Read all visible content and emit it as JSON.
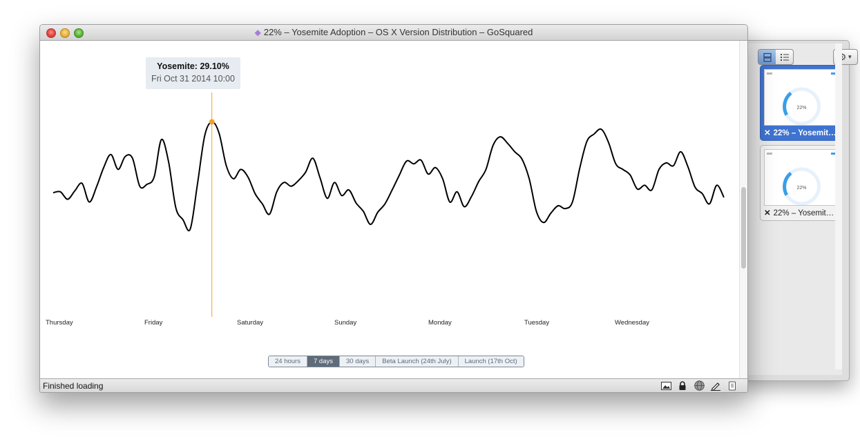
{
  "window": {
    "title": "22% – Yosemite Adoption – OS X Version Distribution – GoSquared"
  },
  "tooltip": {
    "series_value": "Yosemite: 29.10%",
    "date": "Fri Oct 31 2014 10:00"
  },
  "range_buttons": [
    {
      "label": "24 hours",
      "active": false
    },
    {
      "label": "7 days",
      "active": true
    },
    {
      "label": "30 days",
      "active": false
    },
    {
      "label": "Beta Launch (24th July)",
      "active": false
    },
    {
      "label": "Launch (17th Oct)",
      "active": false
    }
  ],
  "status": {
    "text": "Finished loading"
  },
  "drawer": {
    "thumbnails": [
      {
        "label": "22% – Yosemit…",
        "thumb_text": "22%",
        "selected": true
      },
      {
        "label": "22% – Yosemit…",
        "thumb_text": "22%",
        "selected": false
      }
    ]
  },
  "icons": {
    "status": [
      "picture-icon",
      "lock-icon",
      "globe-icon",
      "pencil-icon",
      "phone-icon"
    ]
  },
  "colors": {
    "line": "#000000",
    "hover_line": "#f0a030",
    "hover_point": "#f0a030",
    "active_button": "#5e6b78",
    "selected_thumb": "#3f73d0"
  },
  "chart_data": {
    "type": "line",
    "x_tick_labels": [
      "Thursday",
      "Friday",
      "Saturday",
      "Sunday",
      "Monday",
      "Tuesday",
      "Wednesday"
    ],
    "highlight": {
      "x_label": "Fri Oct 31 2014 10:00",
      "value": 29.1
    },
    "series": [
      {
        "name": "Yosemite",
        "values": [
          21.5,
          21.6,
          20.8,
          21.7,
          22.5,
          20.5,
          22.1,
          24.2,
          25.6,
          24.0,
          25.4,
          25.2,
          22.2,
          22.4,
          23.2,
          27.2,
          24.8,
          19.9,
          18.6,
          17.6,
          22.4,
          27.6,
          29.1,
          27.9,
          24.4,
          23.0,
          24.0,
          23.2,
          21.4,
          20.3,
          19.2,
          21.6,
          22.6,
          22.2,
          22.8,
          23.7,
          25.2,
          23.1,
          20.9,
          22.6,
          21.2,
          21.8,
          20.4,
          19.5,
          18.1,
          19.4,
          20.3,
          21.8,
          23.4,
          24.9,
          24.6,
          25.0,
          23.5,
          24.2,
          23.0,
          20.5,
          21.6,
          20.0,
          21.1,
          22.7,
          24.0,
          26.6,
          27.5,
          26.8,
          25.9,
          25.1,
          23.0,
          19.5,
          18.3,
          19.3,
          20.1,
          19.8,
          20.5,
          24.1,
          27.0,
          27.8,
          28.3,
          26.9,
          24.6,
          24.0,
          23.4,
          21.9,
          22.3,
          21.8,
          24.0,
          24.7,
          24.4,
          25.9,
          24.3,
          22.1,
          21.4,
          20.3,
          22.3,
          21.0
        ]
      }
    ]
  }
}
